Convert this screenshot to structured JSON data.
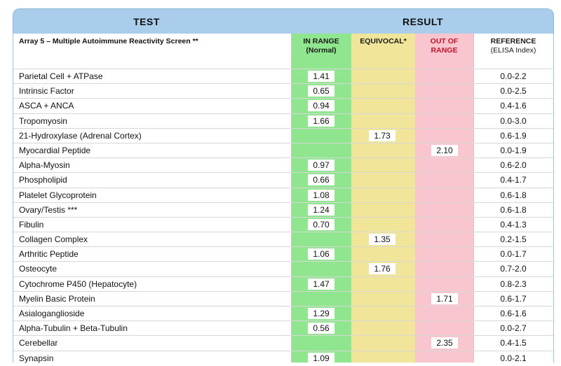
{
  "header": {
    "test_label": "TEST",
    "result_label": "RESULT"
  },
  "subheader": {
    "array_title": "Array 5 – Multiple Autoimmune Reactivity Screen **",
    "in_range_line1": "IN RANGE",
    "in_range_line2": "(Normal)",
    "equivocal": "EQUIVOCAL*",
    "out_line1": "OUT OF",
    "out_line2": "RANGE",
    "ref_line1": "REFERENCE",
    "ref_line2": "(ELISA Index)"
  },
  "colors": {
    "in_range": "#8fe68e",
    "equivocal": "#f1e59a",
    "out_of_range": "#f9c6cf",
    "header": "#a9cdea",
    "out_of_range_text": "#c0142a"
  },
  "rows": [
    {
      "name": "Parietal Cell + ATPase",
      "value": "1.41",
      "status": "in",
      "ref": "0.0-2.2"
    },
    {
      "name": "Intrinsic Factor",
      "value": "0.65",
      "status": "in",
      "ref": "0.0-2.5"
    },
    {
      "name": "ASCA + ANCA",
      "value": "0.94",
      "status": "in",
      "ref": "0.4-1.6"
    },
    {
      "name": "Tropomyosin",
      "value": "1.66",
      "status": "in",
      "ref": "0.0-3.0"
    },
    {
      "name": "21-Hydroxylase (Adrenal Cortex)",
      "value": "1.73",
      "status": "eq",
      "ref": "0.6-1.9"
    },
    {
      "name": "Myocardial Peptide",
      "value": "2.10",
      "status": "oor",
      "ref": "0.0-1.9"
    },
    {
      "name": "Alpha-Myosin",
      "value": "0.97",
      "status": "in",
      "ref": "0.6-2.0"
    },
    {
      "name": "Phospholipid",
      "value": "0.66",
      "status": "in",
      "ref": "0.4-1.7"
    },
    {
      "name": "Platelet Glycoprotein",
      "value": "1.08",
      "status": "in",
      "ref": "0.6-1.8"
    },
    {
      "name": "Ovary/Testis ***",
      "value": "1.24",
      "status": "in",
      "ref": "0.6-1.8"
    },
    {
      "name": "Fibulin",
      "value": "0.70",
      "status": "in",
      "ref": "0.4-1.3"
    },
    {
      "name": "Collagen Complex",
      "value": "1.35",
      "status": "eq",
      "ref": "0.2-1.5"
    },
    {
      "name": "Arthritic Peptide",
      "value": "1.06",
      "status": "in",
      "ref": "0.0-1.7"
    },
    {
      "name": "Osteocyte",
      "value": "1.76",
      "status": "eq",
      "ref": "0.7-2.0"
    },
    {
      "name": "Cytochrome P450 (Hepatocyte)",
      "value": "1.47",
      "status": "in",
      "ref": "0.8-2.3"
    },
    {
      "name": "Myelin Basic Protein",
      "value": "1.71",
      "status": "oor",
      "ref": "0.6-1.7"
    },
    {
      "name": "Asialoganglioside",
      "value": "1.29",
      "status": "in",
      "ref": "0.6-1.6"
    },
    {
      "name": "Alpha-Tubulin + Beta-Tubulin",
      "value": "0.56",
      "status": "in",
      "ref": "0.0-2.7"
    },
    {
      "name": "Cerebellar",
      "value": "2.35",
      "status": "oor",
      "ref": "0.4-1.5"
    },
    {
      "name": "Synapsin",
      "value": "1.09",
      "status": "in",
      "ref": "0.0-2.1"
    }
  ]
}
